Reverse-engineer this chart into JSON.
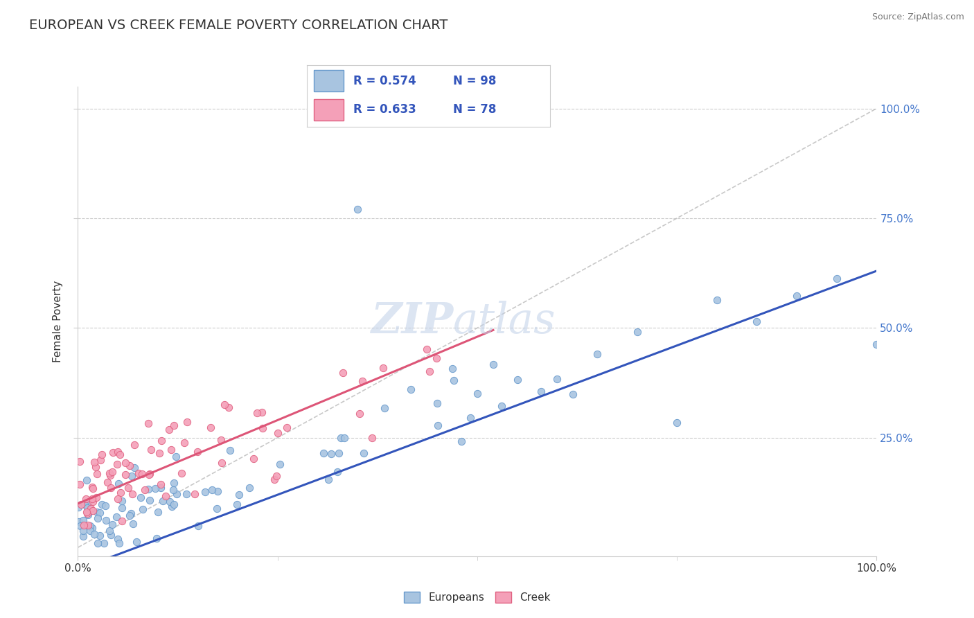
{
  "title": "EUROPEAN VS CREEK FEMALE POVERTY CORRELATION CHART",
  "source": "Source: ZipAtlas.com",
  "ylabel": "Female Poverty",
  "xlim": [
    0,
    1
  ],
  "ylim": [
    0,
    1
  ],
  "xtick_labels": [
    "0.0%",
    "100.0%"
  ],
  "xtick_vals": [
    0,
    1.0
  ],
  "ytick_labels": [
    "25.0%",
    "50.0%",
    "75.0%",
    "100.0%"
  ],
  "ytick_vals": [
    0.25,
    0.5,
    0.75,
    1.0
  ],
  "european_color": "#a8c4e0",
  "creek_color": "#f4a0b8",
  "european_edge": "#6699cc",
  "creek_edge": "#e06080",
  "european_R": 0.574,
  "european_N": 98,
  "creek_R": 0.633,
  "creek_N": 78,
  "european_line_color": "#3355bb",
  "creek_line_color": "#dd5577",
  "dashed_line_color": "#bbbbbb",
  "watermark_zip": "ZIP",
  "watermark_atlas": "atlas",
  "title_color": "#333333",
  "legend_text_color": "#3355bb",
  "background_color": "#ffffff",
  "grid_color": "#cccccc",
  "title_fontsize": 14,
  "marker_size": 55,
  "ytick_color": "#4477cc"
}
